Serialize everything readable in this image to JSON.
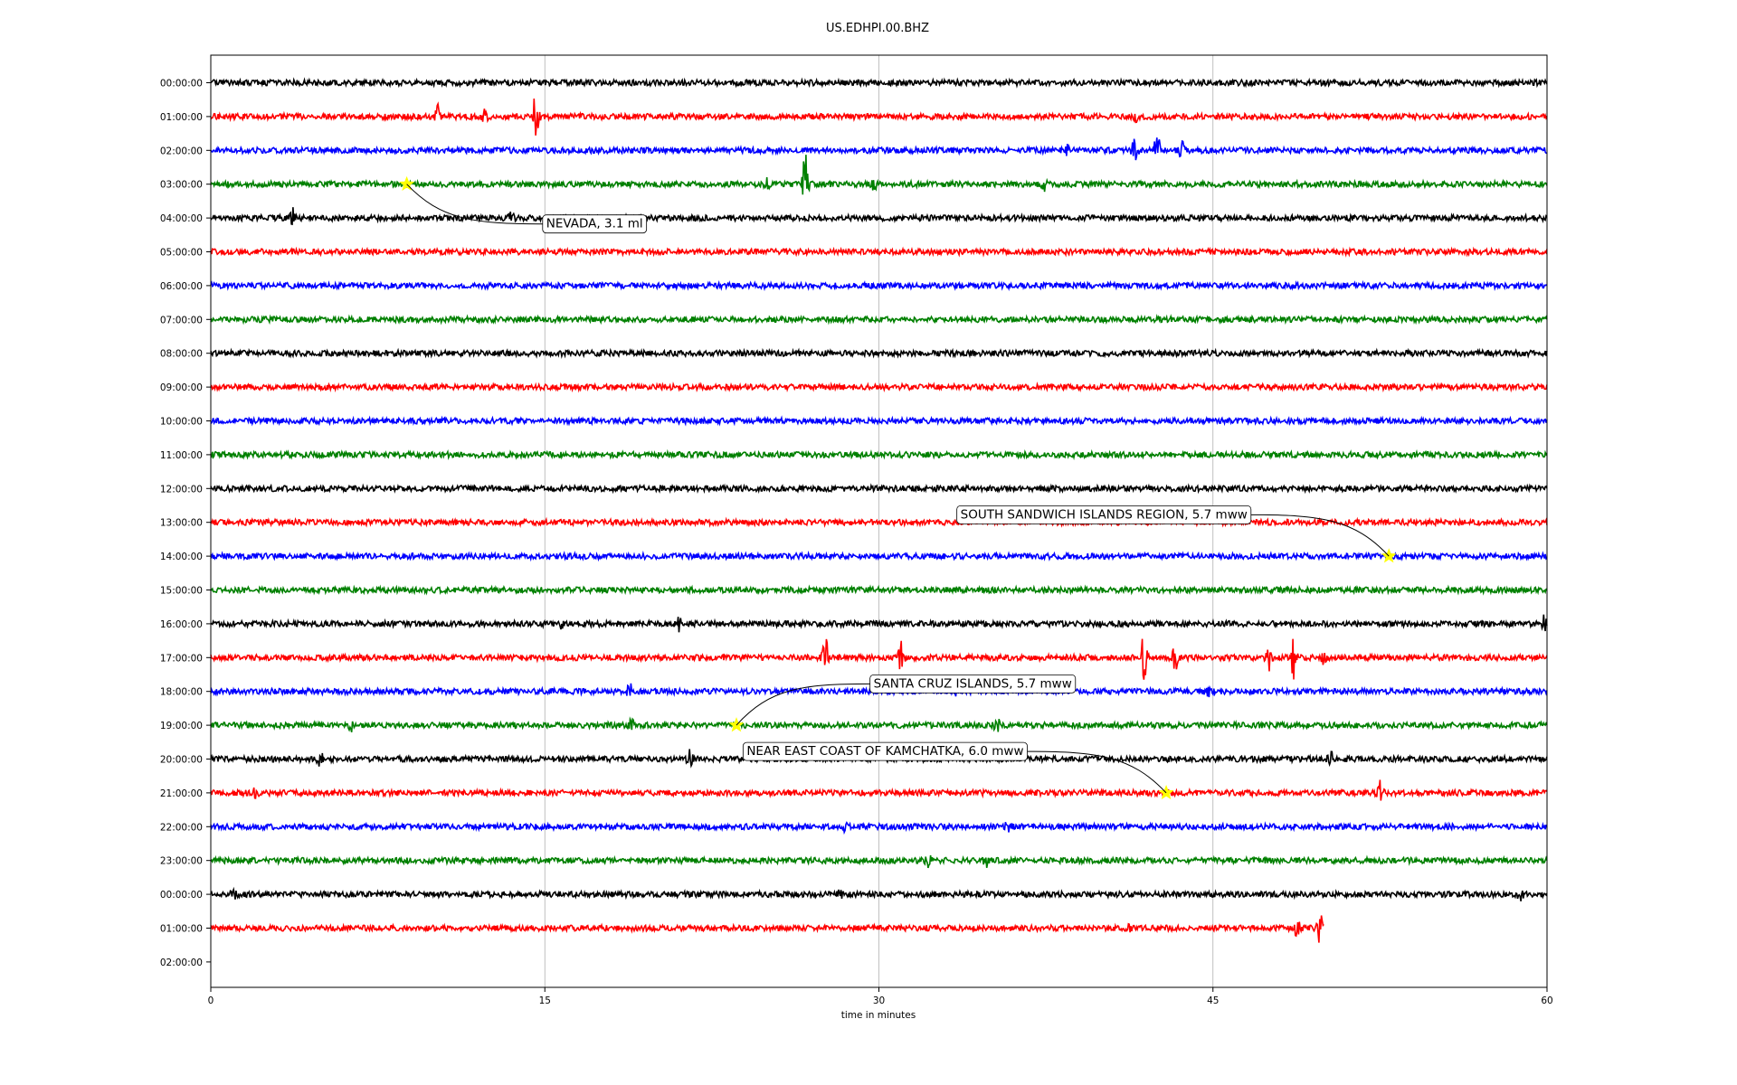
{
  "chart_data": {
    "type": "line",
    "title": "US.EDHPI.00.BHZ",
    "xlabel": "time in minutes",
    "ylabel": "",
    "xlim": [
      0,
      60
    ],
    "x_ticks": [
      0,
      15,
      30,
      45,
      60
    ],
    "grid": "vertical",
    "row_labels": [
      "00:00:00",
      "01:00:00",
      "02:00:00",
      "03:00:00",
      "04:00:00",
      "05:00:00",
      "06:00:00",
      "07:00:00",
      "08:00:00",
      "09:00:00",
      "10:00:00",
      "11:00:00",
      "12:00:00",
      "13:00:00",
      "14:00:00",
      "15:00:00",
      "16:00:00",
      "17:00:00",
      "18:00:00",
      "19:00:00",
      "20:00:00",
      "21:00:00",
      "22:00:00",
      "23:00:00",
      "00:00:00",
      "01:00:00",
      "02:00:00"
    ],
    "trace_colors": [
      "#000000",
      "#ff0000",
      "#0000ff",
      "#008000"
    ],
    "trace_end_minute": [
      60,
      60,
      60,
      60,
      60,
      60,
      60,
      60,
      60,
      60,
      60,
      60,
      60,
      60,
      60,
      60,
      60,
      60,
      60,
      60,
      60,
      60,
      60,
      60,
      60,
      50,
      0
    ],
    "bursts": [
      {
        "row": 1,
        "minute": 10.2,
        "amp": 1.0
      },
      {
        "row": 1,
        "minute": 12.3,
        "amp": 0.6
      },
      {
        "row": 1,
        "minute": 14.6,
        "amp": 2.5
      },
      {
        "row": 1,
        "minute": 41.5,
        "amp": 0.4
      },
      {
        "row": 2,
        "minute": 41.5,
        "amp": 1.2
      },
      {
        "row": 2,
        "minute": 42.5,
        "amp": 1.8
      },
      {
        "row": 2,
        "minute": 43.6,
        "amp": 1.1
      },
      {
        "row": 2,
        "minute": 38.5,
        "amp": 0.4
      },
      {
        "row": 3,
        "minute": 26.7,
        "amp": 3.0
      },
      {
        "row": 3,
        "minute": 25.0,
        "amp": 0.5
      },
      {
        "row": 3,
        "minute": 29.8,
        "amp": 0.5
      },
      {
        "row": 3,
        "minute": 37.4,
        "amp": 0.6
      },
      {
        "row": 4,
        "minute": 3.7,
        "amp": 0.8
      },
      {
        "row": 4,
        "minute": 13.5,
        "amp": 0.5
      },
      {
        "row": 16,
        "minute": 21.0,
        "amp": 0.6
      },
      {
        "row": 16,
        "minute": 15.8,
        "amp": 0.4
      },
      {
        "row": 16,
        "minute": 59.9,
        "amp": 0.7
      },
      {
        "row": 17,
        "minute": 27.6,
        "amp": 2.0
      },
      {
        "row": 17,
        "minute": 31.0,
        "amp": 1.4
      },
      {
        "row": 17,
        "minute": 41.9,
        "amp": 2.5
      },
      {
        "row": 17,
        "minute": 43.3,
        "amp": 1.6
      },
      {
        "row": 17,
        "minute": 48.6,
        "amp": 2.2
      },
      {
        "row": 17,
        "minute": 47.5,
        "amp": 1.2
      },
      {
        "row": 17,
        "minute": 50.0,
        "amp": 0.6
      },
      {
        "row": 18,
        "minute": 18.8,
        "amp": 0.8
      },
      {
        "row": 18,
        "minute": 33.5,
        "amp": 0.6
      },
      {
        "row": 18,
        "minute": 44.8,
        "amp": 0.4
      },
      {
        "row": 19,
        "minute": 6.3,
        "amp": 0.5
      },
      {
        "row": 19,
        "minute": 18.9,
        "amp": 0.5
      },
      {
        "row": 19,
        "minute": 35.3,
        "amp": 0.6
      },
      {
        "row": 20,
        "minute": 4.9,
        "amp": 0.8
      },
      {
        "row": 20,
        "minute": 21.5,
        "amp": 0.8
      },
      {
        "row": 20,
        "minute": 50.3,
        "amp": 0.5
      },
      {
        "row": 21,
        "minute": 52.5,
        "amp": 1.0
      },
      {
        "row": 21,
        "minute": 2.0,
        "amp": 0.4
      },
      {
        "row": 22,
        "minute": 28.5,
        "amp": 0.4
      },
      {
        "row": 22,
        "minute": 35.8,
        "amp": 0.5
      },
      {
        "row": 23,
        "minute": 32.2,
        "amp": 0.6
      },
      {
        "row": 23,
        "minute": 34.8,
        "amp": 0.5
      },
      {
        "row": 24,
        "minute": 1.0,
        "amp": 0.5
      },
      {
        "row": 24,
        "minute": 28.3,
        "amp": 0.4
      },
      {
        "row": 24,
        "minute": 58.8,
        "amp": 0.5
      },
      {
        "row": 25,
        "minute": 41.3,
        "amp": 0.4
      },
      {
        "row": 25,
        "minute": 48.8,
        "amp": 0.9
      },
      {
        "row": 25,
        "minute": 49.8,
        "amp": 1.3
      }
    ],
    "events": [
      {
        "label": "NEVADA, 3.1 ml",
        "row": 3,
        "minute": 8.8,
        "label_minute": 14.9,
        "label_row": 4.15
      },
      {
        "label": "SOUTH SANDWICH ISLANDS REGION, 5.7 mww",
        "row": 14,
        "minute": 52.9,
        "label_minute": 33.5,
        "label_row": 12.75
      },
      {
        "label": "SANTA CRUZ ISLANDS, 5.7 mww",
        "row": 19,
        "minute": 23.6,
        "label_minute": 29.6,
        "label_row": 17.75
      },
      {
        "label": "NEAR EAST COAST OF KAMCHATKA, 6.0 mww",
        "row": 21,
        "minute": 42.9,
        "label_minute": 23.9,
        "label_row": 19.75
      }
    ],
    "event_marker": {
      "shape": "star",
      "color": "#ffff00"
    }
  }
}
